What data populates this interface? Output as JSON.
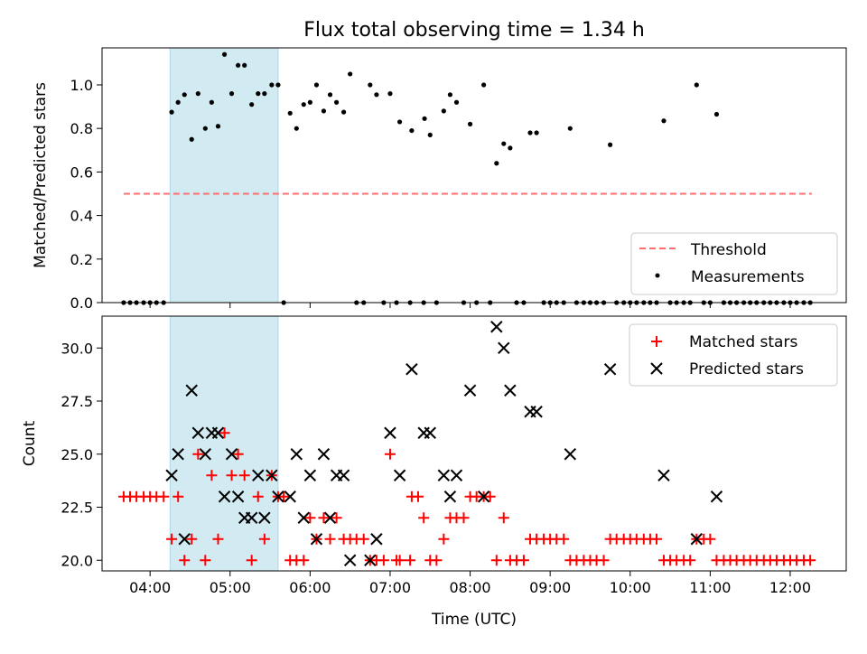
{
  "chart_data": {
    "type": "scatter",
    "title": "Flux total observing time = 1.34 h",
    "xlabel": "Time (UTC)",
    "x_tick_labels": [
      "04:00",
      "05:00",
      "06:00",
      "07:00",
      "08:00",
      "09:00",
      "10:00",
      "11:00",
      "12:00"
    ],
    "x_ticks_hours": [
      4,
      5,
      6,
      7,
      8,
      9,
      10,
      11,
      12
    ],
    "xlim_hours": [
      3.4,
      12.7
    ],
    "highlight_span_hours": [
      4.25,
      5.6
    ],
    "colors": {
      "span": "#add8e6",
      "threshold": "#ff6f6f",
      "matched": "#ff0000",
      "predicted": "#000000",
      "measurement": "#000000"
    },
    "top": {
      "ylabel": "Matched/Predicted stars",
      "ylim": [
        0,
        1.17
      ],
      "yticks": [
        0.0,
        0.2,
        0.4,
        0.6,
        0.8,
        1.0
      ],
      "ytick_labels": [
        "0.0",
        "0.2",
        "0.4",
        "0.6",
        "0.8",
        "1.0"
      ],
      "threshold": {
        "name": "Threshold",
        "value": 0.5,
        "x_range_hours": [
          3.67,
          12.27
        ]
      },
      "measurements_name": "Measurements",
      "legend_position": "lower-right",
      "measurements": [
        [
          3.67,
          0
        ],
        [
          3.75,
          0
        ],
        [
          3.83,
          0
        ],
        [
          3.92,
          0
        ],
        [
          4.0,
          0
        ],
        [
          4.08,
          0
        ],
        [
          4.17,
          0
        ],
        [
          4.27,
          0.875
        ],
        [
          4.35,
          0.92
        ],
        [
          4.43,
          0.955
        ],
        [
          4.52,
          0.75
        ],
        [
          4.6,
          0.96
        ],
        [
          4.69,
          0.8
        ],
        [
          4.77,
          0.92
        ],
        [
          4.85,
          0.81
        ],
        [
          4.93,
          1.14
        ],
        [
          5.02,
          0.96
        ],
        [
          5.1,
          1.09
        ],
        [
          5.18,
          1.09
        ],
        [
          5.27,
          0.91
        ],
        [
          5.35,
          0.96
        ],
        [
          5.43,
          0.96
        ],
        [
          5.52,
          1.0
        ],
        [
          5.6,
          1.0
        ],
        [
          5.67,
          0
        ],
        [
          5.75,
          0.87
        ],
        [
          5.83,
          0.8
        ],
        [
          5.92,
          0.91
        ],
        [
          6.0,
          0.92
        ],
        [
          6.08,
          1.0
        ],
        [
          6.17,
          0.88
        ],
        [
          6.25,
          0.955
        ],
        [
          6.33,
          0.92
        ],
        [
          6.42,
          0.875
        ],
        [
          6.5,
          1.05
        ],
        [
          6.58,
          0
        ],
        [
          6.67,
          0
        ],
        [
          6.75,
          1.0
        ],
        [
          6.83,
          0.955
        ],
        [
          6.92,
          0
        ],
        [
          7.0,
          0.96
        ],
        [
          7.08,
          0
        ],
        [
          7.12,
          0.83
        ],
        [
          7.25,
          0
        ],
        [
          7.27,
          0.79
        ],
        [
          7.42,
          0
        ],
        [
          7.43,
          0.845
        ],
        [
          7.5,
          0.77
        ],
        [
          7.58,
          0
        ],
        [
          7.67,
          0.88
        ],
        [
          7.75,
          0.955
        ],
        [
          7.83,
          0.92
        ],
        [
          7.92,
          0
        ],
        [
          8.0,
          0.82
        ],
        [
          8.08,
          0
        ],
        [
          8.17,
          1.0
        ],
        [
          8.25,
          0
        ],
        [
          8.33,
          0.64
        ],
        [
          8.42,
          0.73
        ],
        [
          8.5,
          0.71
        ],
        [
          8.58,
          0
        ],
        [
          8.67,
          0
        ],
        [
          8.75,
          0.78
        ],
        [
          8.83,
          0.78
        ],
        [
          8.92,
          0
        ],
        [
          9.0,
          0
        ],
        [
          9.08,
          0
        ],
        [
          9.17,
          0
        ],
        [
          9.25,
          0.8
        ],
        [
          9.33,
          0
        ],
        [
          9.42,
          0
        ],
        [
          9.5,
          0
        ],
        [
          9.58,
          0
        ],
        [
          9.67,
          0
        ],
        [
          9.75,
          0.725
        ],
        [
          9.83,
          0
        ],
        [
          9.92,
          0
        ],
        [
          10.0,
          0
        ],
        [
          10.08,
          0
        ],
        [
          10.17,
          0
        ],
        [
          10.25,
          0
        ],
        [
          10.33,
          0
        ],
        [
          10.42,
          0.835
        ],
        [
          10.5,
          0
        ],
        [
          10.58,
          0
        ],
        [
          10.67,
          0
        ],
        [
          10.75,
          0
        ],
        [
          10.83,
          1.0
        ],
        [
          10.92,
          0
        ],
        [
          11.0,
          0
        ],
        [
          11.08,
          0.865
        ],
        [
          11.17,
          0
        ],
        [
          11.25,
          0
        ],
        [
          11.33,
          0
        ],
        [
          11.42,
          0
        ],
        [
          11.5,
          0
        ],
        [
          11.58,
          0
        ],
        [
          11.67,
          0
        ],
        [
          11.75,
          0
        ],
        [
          11.83,
          0
        ],
        [
          11.92,
          0
        ],
        [
          12.0,
          0
        ],
        [
          12.08,
          0
        ],
        [
          12.17,
          0
        ],
        [
          12.25,
          0
        ]
      ]
    },
    "bottom": {
      "ylabel": "Count",
      "ylim": [
        19.5,
        31.5
      ],
      "yticks": [
        20.0,
        22.5,
        25.0,
        27.5,
        30.0
      ],
      "ytick_labels": [
        "20.0",
        "22.5",
        "25.0",
        "27.5",
        "30.0"
      ],
      "legend_position": "upper-right",
      "series": [
        {
          "name": "Matched stars",
          "marker": "+",
          "points": [
            [
              3.67,
              23
            ],
            [
              3.75,
              23
            ],
            [
              3.83,
              23
            ],
            [
              3.92,
              23
            ],
            [
              4.0,
              23
            ],
            [
              4.08,
              23
            ],
            [
              4.17,
              23
            ],
            [
              4.27,
              21
            ],
            [
              4.35,
              23
            ],
            [
              4.43,
              20
            ],
            [
              4.52,
              21
            ],
            [
              4.6,
              25
            ],
            [
              4.69,
              20
            ],
            [
              4.77,
              24
            ],
            [
              4.85,
              21
            ],
            [
              4.93,
              26
            ],
            [
              5.02,
              24
            ],
            [
              5.1,
              25
            ],
            [
              5.18,
              24
            ],
            [
              5.27,
              20
            ],
            [
              5.35,
              23
            ],
            [
              5.43,
              21
            ],
            [
              5.52,
              24
            ],
            [
              5.6,
              23
            ],
            [
              5.67,
              23
            ],
            [
              5.75,
              20
            ],
            [
              5.83,
              20
            ],
            [
              5.92,
              20
            ],
            [
              6.0,
              22
            ],
            [
              6.08,
              21
            ],
            [
              6.17,
              22
            ],
            [
              6.25,
              21
            ],
            [
              6.33,
              22
            ],
            [
              6.42,
              21
            ],
            [
              6.5,
              21
            ],
            [
              6.58,
              21
            ],
            [
              6.67,
              21
            ],
            [
              6.75,
              20
            ],
            [
              6.83,
              20
            ],
            [
              6.92,
              20
            ],
            [
              7.0,
              25
            ],
            [
              7.08,
              20
            ],
            [
              7.12,
              20
            ],
            [
              7.25,
              20
            ],
            [
              7.27,
              23
            ],
            [
              7.35,
              23
            ],
            [
              7.42,
              22
            ],
            [
              7.5,
              20
            ],
            [
              7.58,
              20
            ],
            [
              7.67,
              21
            ],
            [
              7.75,
              22
            ],
            [
              7.83,
              22
            ],
            [
              7.92,
              22
            ],
            [
              8.0,
              23
            ],
            [
              8.08,
              23
            ],
            [
              8.17,
              23
            ],
            [
              8.25,
              23
            ],
            [
              8.33,
              20
            ],
            [
              8.42,
              22
            ],
            [
              8.5,
              20
            ],
            [
              8.58,
              20
            ],
            [
              8.67,
              20
            ],
            [
              8.75,
              21
            ],
            [
              8.83,
              21
            ],
            [
              8.92,
              21
            ],
            [
              9.0,
              21
            ],
            [
              9.08,
              21
            ],
            [
              9.17,
              21
            ],
            [
              9.25,
              20
            ],
            [
              9.33,
              20
            ],
            [
              9.42,
              20
            ],
            [
              9.5,
              20
            ],
            [
              9.58,
              20
            ],
            [
              9.67,
              20
            ],
            [
              9.75,
              21
            ],
            [
              9.83,
              21
            ],
            [
              9.92,
              21
            ],
            [
              10.0,
              21
            ],
            [
              10.08,
              21
            ],
            [
              10.17,
              21
            ],
            [
              10.25,
              21
            ],
            [
              10.33,
              21
            ],
            [
              10.42,
              20
            ],
            [
              10.5,
              20
            ],
            [
              10.58,
              20
            ],
            [
              10.67,
              20
            ],
            [
              10.75,
              20
            ],
            [
              10.83,
              21
            ],
            [
              10.92,
              21
            ],
            [
              11.0,
              21
            ],
            [
              11.08,
              20
            ],
            [
              11.17,
              20
            ],
            [
              11.25,
              20
            ],
            [
              11.33,
              20
            ],
            [
              11.42,
              20
            ],
            [
              11.5,
              20
            ],
            [
              11.58,
              20
            ],
            [
              11.67,
              20
            ],
            [
              11.75,
              20
            ],
            [
              11.83,
              20
            ],
            [
              11.92,
              20
            ],
            [
              12.0,
              20
            ],
            [
              12.08,
              20
            ],
            [
              12.17,
              20
            ],
            [
              12.25,
              20
            ]
          ]
        },
        {
          "name": "Predicted stars",
          "marker": "x",
          "points": [
            [
              4.27,
              24
            ],
            [
              4.35,
              25
            ],
            [
              4.43,
              21
            ],
            [
              4.52,
              28
            ],
            [
              4.6,
              26
            ],
            [
              4.69,
              25
            ],
            [
              4.77,
              26
            ],
            [
              4.85,
              26
            ],
            [
              4.93,
              23
            ],
            [
              5.02,
              25
            ],
            [
              5.1,
              23
            ],
            [
              5.18,
              22
            ],
            [
              5.27,
              22
            ],
            [
              5.35,
              24
            ],
            [
              5.43,
              22
            ],
            [
              5.52,
              24
            ],
            [
              5.6,
              23
            ],
            [
              5.75,
              23
            ],
            [
              5.83,
              25
            ],
            [
              5.92,
              22
            ],
            [
              6.0,
              24
            ],
            [
              6.08,
              21
            ],
            [
              6.17,
              25
            ],
            [
              6.25,
              22
            ],
            [
              6.33,
              24
            ],
            [
              6.42,
              24
            ],
            [
              6.5,
              20
            ],
            [
              6.75,
              20
            ],
            [
              6.83,
              21
            ],
            [
              7.0,
              26
            ],
            [
              7.12,
              24
            ],
            [
              7.27,
              29
            ],
            [
              7.42,
              26
            ],
            [
              7.5,
              26
            ],
            [
              7.67,
              24
            ],
            [
              7.75,
              23
            ],
            [
              7.83,
              24
            ],
            [
              8.0,
              28
            ],
            [
              8.17,
              23
            ],
            [
              8.33,
              31
            ],
            [
              8.42,
              30
            ],
            [
              8.5,
              28
            ],
            [
              8.75,
              27
            ],
            [
              8.83,
              27
            ],
            [
              9.25,
              25
            ],
            [
              9.75,
              29
            ],
            [
              10.42,
              24
            ],
            [
              10.83,
              21
            ],
            [
              11.08,
              23
            ]
          ]
        }
      ]
    }
  }
}
